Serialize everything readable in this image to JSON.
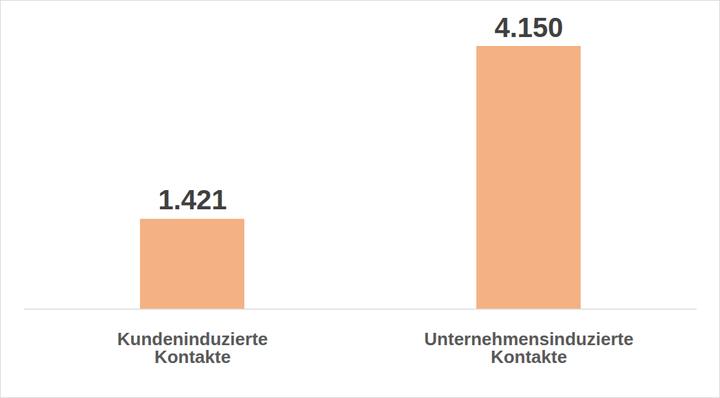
{
  "chart_data": {
    "type": "bar",
    "categories": [
      "Kundeninduzierte Kontakte",
      "Unternehmensinduzierte Kontakte"
    ],
    "values": [
      1421,
      4150
    ],
    "value_labels": [
      "1.421",
      "4.150"
    ],
    "color": "#f4b183",
    "data_labels": true,
    "grid": false,
    "tick_labels": "x"
  }
}
